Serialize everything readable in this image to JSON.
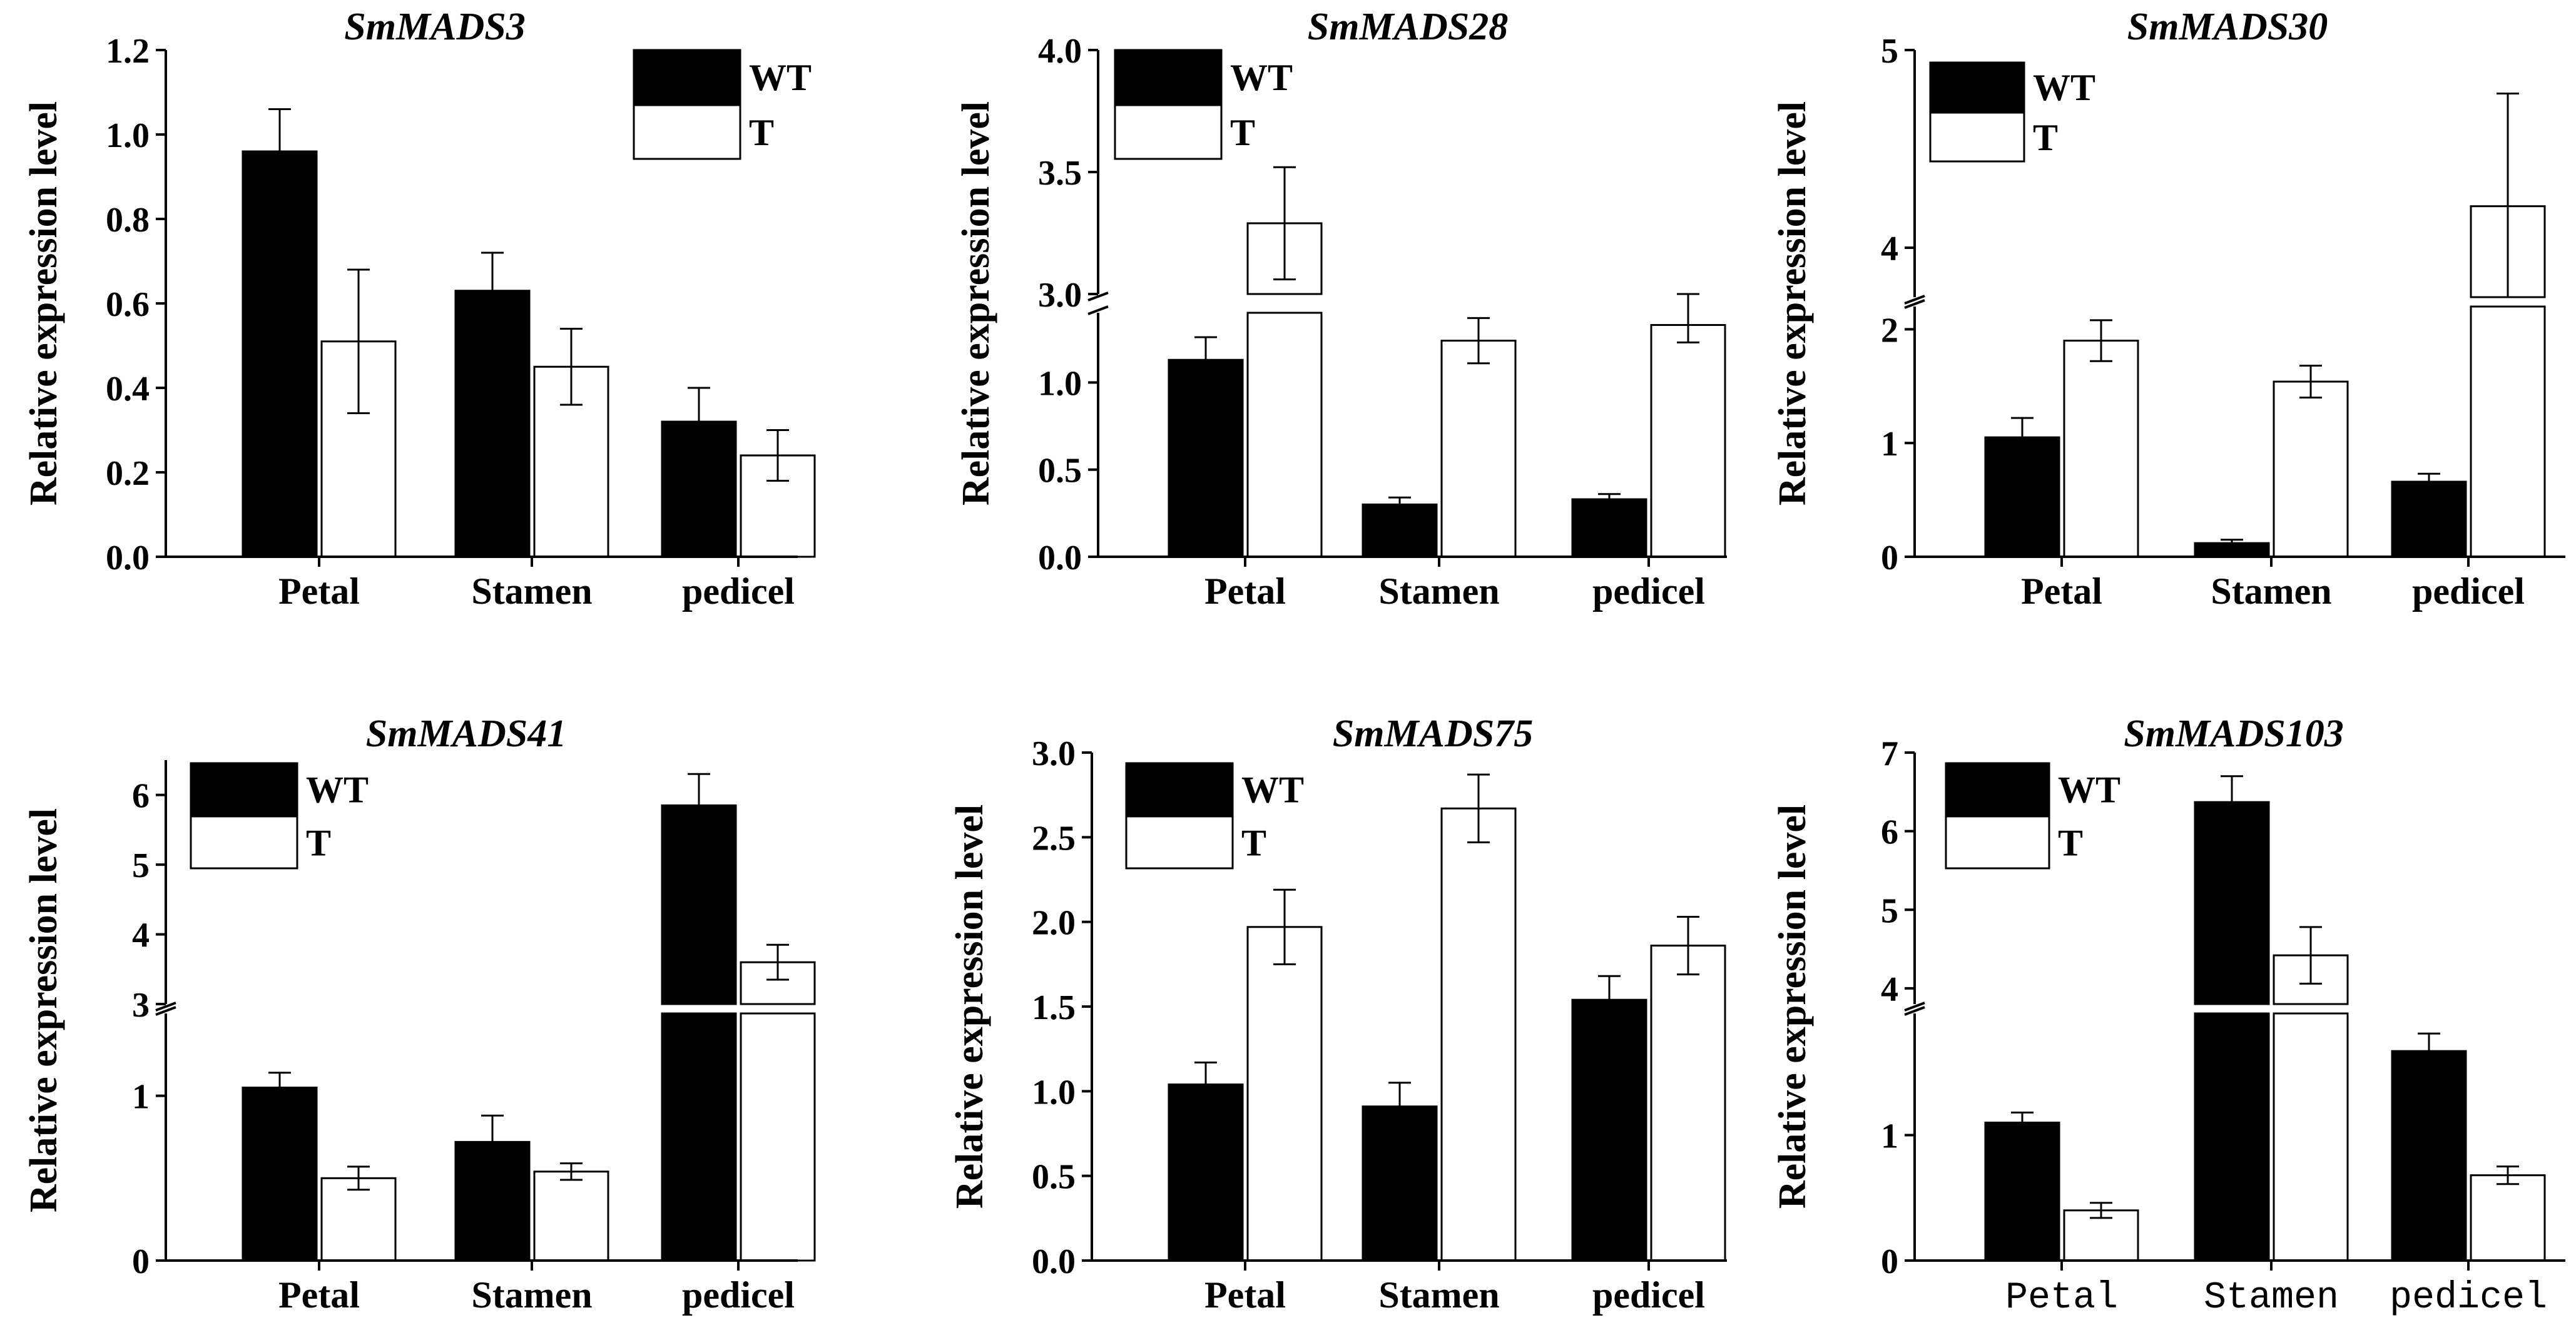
{
  "colors": {
    "wt": "#000000",
    "t": "#ffffff",
    "axis": "#000000"
  },
  "chart_data": [
    {
      "type": "bar",
      "title": "SmMADS3",
      "xlabel": "",
      "ylabel": "Relative expression level",
      "categories": [
        "Petal",
        "Stamen",
        "pedicel"
      ],
      "series": [
        {
          "name": "WT",
          "values": [
            0.96,
            0.63,
            0.32
          ],
          "errors": [
            0.1,
            0.09,
            0.08
          ]
        },
        {
          "name": "T",
          "values": [
            0.51,
            0.45,
            0.24
          ],
          "errors": [
            0.17,
            0.09,
            0.06
          ]
        }
      ],
      "ylim": [
        0,
        1.2
      ],
      "yticks": [
        0.0,
        0.2,
        0.4,
        0.6,
        0.8,
        1.0,
        1.2
      ],
      "ytick_labels": [
        "0.0",
        "0.2",
        "0.4",
        "0.6",
        "0.8",
        "1.0",
        "1.2"
      ],
      "legend": "top-right",
      "grid": false
    },
    {
      "type": "bar",
      "title": "SmMADS28",
      "xlabel": "",
      "ylabel": "Relative expression level",
      "categories": [
        "Petal",
        "Stamen",
        "pedicel"
      ],
      "series": [
        {
          "name": "WT",
          "values": [
            1.13,
            0.3,
            0.33
          ],
          "errors": [
            0.13,
            0.04,
            0.03
          ]
        },
        {
          "name": "T",
          "values": [
            3.29,
            1.24,
            1.33
          ],
          "errors": [
            0.23,
            0.13,
            0.1
          ]
        }
      ],
      "axis_break": {
        "lower_range": [
          0,
          1.4
        ],
        "upper_range": [
          3.0,
          4.0
        ]
      },
      "yticks": [
        0.0,
        0.5,
        1.0,
        3.0,
        3.5,
        4.0
      ],
      "ytick_labels": [
        "0.0",
        "0.5",
        "1.0",
        "3.0",
        "3.5",
        "4.0"
      ],
      "legend": "top-left",
      "grid": false
    },
    {
      "type": "bar",
      "title": "SmMADS30",
      "xlabel": "",
      "ylabel": "Relative expression level",
      "categories": [
        "Petal",
        "Stamen",
        "pedicel"
      ],
      "series": [
        {
          "name": "WT",
          "values": [
            1.05,
            0.12,
            0.66
          ],
          "errors": [
            0.17,
            0.03,
            0.07
          ]
        },
        {
          "name": "T",
          "values": [
            1.9,
            1.54,
            4.21
          ],
          "errors": [
            0.18,
            0.14,
            0.57
          ]
        }
      ],
      "axis_break": {
        "lower_range": [
          0,
          2.2
        ],
        "upper_range": [
          3.75,
          5.0
        ]
      },
      "yticks": [
        0,
        1,
        2,
        4,
        5
      ],
      "ytick_labels": [
        "0",
        "1",
        "2",
        "4",
        "5"
      ],
      "legend": "top-left",
      "grid": false
    },
    {
      "type": "bar",
      "title": "SmMADS41",
      "xlabel": "",
      "ylabel": "Relative expression level",
      "categories": [
        "Petal",
        "Stamen",
        "pedicel"
      ],
      "series": [
        {
          "name": "WT",
          "values": [
            1.05,
            0.72,
            5.85
          ],
          "errors": [
            0.09,
            0.16,
            0.45
          ]
        },
        {
          "name": "T",
          "values": [
            0.5,
            0.54,
            3.6
          ],
          "errors": [
            0.07,
            0.05,
            0.25
          ]
        }
      ],
      "axis_break": {
        "lower_range": [
          0,
          1.5
        ],
        "upper_range": [
          3.0,
          6.5
        ]
      },
      "yticks": [
        0,
        1,
        3,
        4,
        5,
        6
      ],
      "ytick_labels": [
        "0",
        "1",
        "3",
        "4",
        "5",
        "6"
      ],
      "legend": "top-left",
      "grid": false
    },
    {
      "type": "bar",
      "title": "SmMADS75",
      "xlabel": "",
      "ylabel": "Relative expression level",
      "categories": [
        "Petal",
        "Stamen",
        "pedicel"
      ],
      "series": [
        {
          "name": "WT",
          "values": [
            1.04,
            0.91,
            1.54
          ],
          "errors": [
            0.13,
            0.14,
            0.14
          ]
        },
        {
          "name": "T",
          "values": [
            1.97,
            2.67,
            1.86
          ],
          "errors": [
            0.22,
            0.2,
            0.17
          ]
        }
      ],
      "ylim": [
        0,
        3.0
      ],
      "yticks": [
        0.0,
        0.5,
        1.0,
        1.5,
        2.0,
        2.5,
        3.0
      ],
      "ytick_labels": [
        "0.0",
        "0.5",
        "1.0",
        "1.5",
        "2.0",
        "2.5",
        "3.0"
      ],
      "legend": "top-left",
      "grid": false
    },
    {
      "type": "bar",
      "title": "SmMADS103",
      "xlabel": "",
      "ylabel": "Relative expression level",
      "categories": [
        "Petal",
        "Stamen",
        "pedicel"
      ],
      "series": [
        {
          "name": "WT",
          "values": [
            1.1,
            6.37,
            1.67
          ],
          "errors": [
            0.08,
            0.33,
            0.14
          ]
        },
        {
          "name": "T",
          "values": [
            0.4,
            4.42,
            0.68
          ],
          "errors": [
            0.06,
            0.36,
            0.07
          ]
        }
      ],
      "axis_break": {
        "lower_range": [
          0,
          1.97
        ],
        "upper_range": [
          3.8,
          7.0
        ]
      },
      "yticks": [
        1,
        4,
        5,
        6,
        7,
        0
      ],
      "ytick_labels": [
        "1",
        "4",
        "5",
        "6",
        "7",
        "0"
      ],
      "legend": "top-left",
      "grid": false,
      "category_font": "mono"
    }
  ]
}
